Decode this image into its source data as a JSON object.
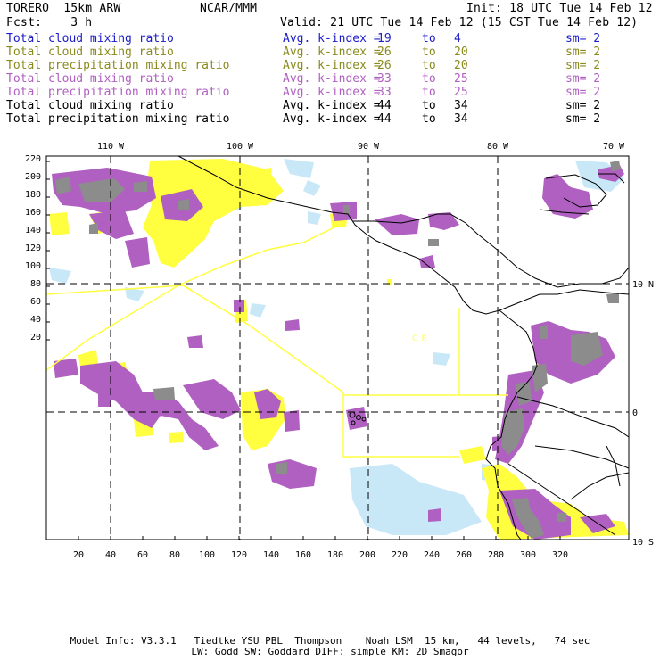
{
  "header": {
    "model": "TORERO  15km ARW",
    "org": "NCAR/MMM",
    "init": "Init: 18 UTC Tue 14 Feb 12",
    "fcst": "Fcst:    3 h",
    "valid": "Valid: 21 UTC Tue 14 Feb 12 (15 CST Tue 14 Feb 12)"
  },
  "legend": [
    {
      "name": "Total cloud mixing ratio",
      "avg": "Avg. k-index =",
      "v1": "19",
      "to": "to",
      "v2": "4",
      "sm": "sm= 2",
      "color": "#1c1cc8"
    },
    {
      "name": "Total cloud mixing ratio",
      "avg": "Avg. k-index =",
      "v1": "26",
      "to": "to",
      "v2": "20",
      "sm": "sm= 2",
      "color": "#8a8a1e"
    },
    {
      "name": "Total precipitation mixing ratio",
      "avg": "Avg. k-index =",
      "v1": "26",
      "to": "to",
      "v2": "20",
      "sm": "sm= 2",
      "color": "#8a8a1e"
    },
    {
      "name": "Total cloud mixing ratio",
      "avg": "Avg. k-index =",
      "v1": "33",
      "to": "to",
      "v2": "25",
      "sm": "sm= 2",
      "color": "#b060c0"
    },
    {
      "name": "Total precipitation mixing ratio",
      "avg": "Avg. k-index =",
      "v1": "33",
      "to": "to",
      "v2": "25",
      "sm": "sm= 2",
      "color": "#b060c0"
    },
    {
      "name": "Total cloud mixing ratio",
      "avg": "Avg. k-index =",
      "v1": "44",
      "to": "to",
      "v2": "34",
      "sm": "sm= 2",
      "color": "#000000"
    },
    {
      "name": "Total precipitation mixing ratio",
      "avg": "Avg. k-index =",
      "v1": "44",
      "to": "to",
      "v2": "34",
      "sm": "sm= 2",
      "color": "#000000"
    }
  ],
  "map": {
    "top_labels": [
      "110 W",
      "100 W",
      "90 W",
      "80 W",
      "70 W"
    ],
    "right_labels": [
      "10 N",
      "0",
      "10 S"
    ],
    "y_ticks": [
      "220",
      "200",
      "180",
      "160",
      "140",
      "120",
      "100",
      "80",
      "60",
      "40",
      "20"
    ],
    "x_ticks": [
      "20",
      "40",
      "60",
      "80",
      "100",
      "120",
      "140",
      "160",
      "180",
      "200",
      "220",
      "240",
      "260",
      "280",
      "300",
      "320"
    ],
    "region_label": "C R",
    "colors": {
      "yellow": "#ffff40",
      "purple": "#b060c0",
      "gray": "#8c8c8c",
      "lightblue": "#c8e8f8",
      "box": "#ffff40"
    }
  },
  "footer": {
    "line1": "Model Info: V3.3.1   Tiedtke YSU PBL  Thompson    Noah LSM  15 km,   44 levels,   74 sec",
    "line2": "LW: Godd SW: Goddard DIFF: simple KM: 2D Smagor"
  }
}
